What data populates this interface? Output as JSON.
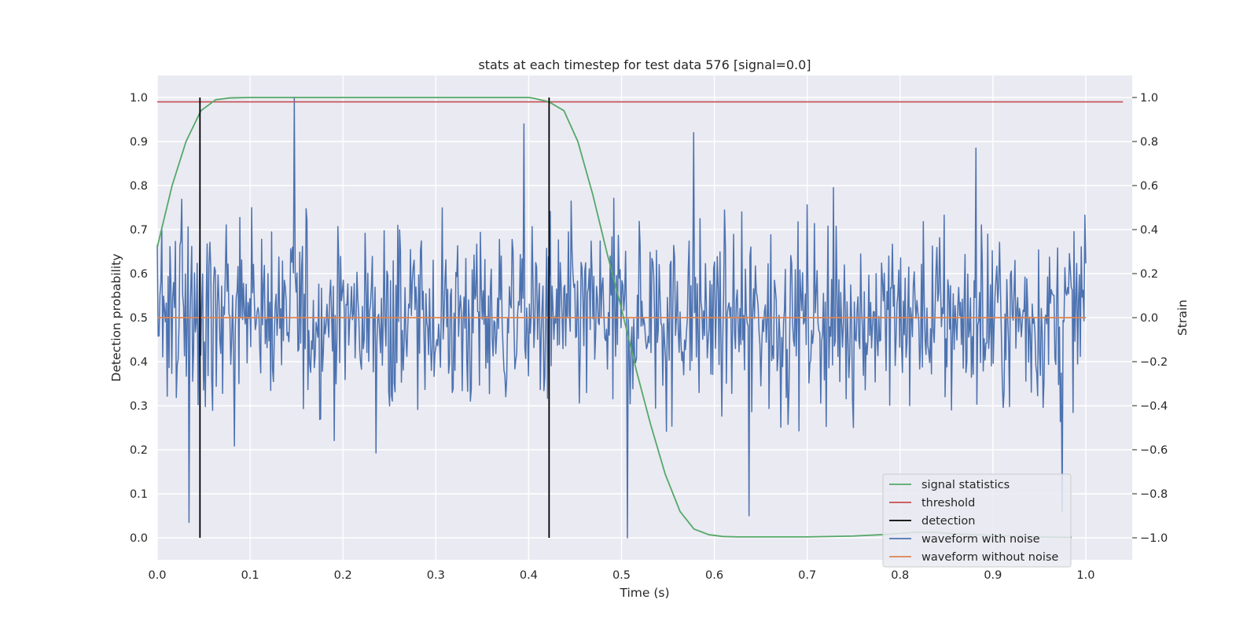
{
  "chart_data": {
    "type": "line",
    "title": "stats at each timestep for test data 576 [signal=0.0]",
    "xlabel": "Time (s)",
    "ylabel": "Detection probability",
    "ylabel_right": "Strain",
    "xlim": [
      0.0,
      1.05
    ],
    "ylim": [
      -0.05,
      1.05
    ],
    "ylim_right": [
      -1.1,
      1.1
    ],
    "x_ticks": [
      "0.0",
      "0.1",
      "0.2",
      "0.3",
      "0.4",
      "0.5",
      "0.6",
      "0.7",
      "0.8",
      "0.9",
      "1.0"
    ],
    "y_ticks": [
      "0.0",
      "0.1",
      "0.2",
      "0.3",
      "0.4",
      "0.5",
      "0.6",
      "0.7",
      "0.8",
      "0.9",
      "1.0"
    ],
    "y_ticks_right": [
      "−1.0",
      "−0.8",
      "−0.6",
      "−0.4",
      "−0.2",
      "0.0",
      "0.2",
      "0.4",
      "0.6",
      "0.8",
      "1.0"
    ],
    "grid": true,
    "legend_position": "bottom-right",
    "colors": {
      "signal_statistics": "#55a868",
      "threshold": "#c44e52",
      "detection": "#000000",
      "waveform_with_noise": "#4c72b0",
      "waveform_without_noise": "#dd8452",
      "plot_background": "#eaeaf2",
      "grid": "#ffffff"
    },
    "series": [
      {
        "name": "signal statistics",
        "axis": "left",
        "x": [
          0.0,
          0.016,
          0.031,
          0.047,
          0.063,
          0.078,
          0.1,
          0.2,
          0.3,
          0.4,
          0.406,
          0.422,
          0.438,
          0.453,
          0.469,
          0.484,
          0.5,
          0.516,
          0.531,
          0.547,
          0.563,
          0.578,
          0.594,
          0.609,
          0.625,
          0.7,
          0.75,
          0.78,
          0.8,
          0.82,
          0.84,
          0.86,
          0.9,
          0.95,
          0.985
        ],
        "y": [
          0.66,
          0.8,
          0.9,
          0.97,
          0.995,
          0.999,
          1.0,
          1.0,
          1.0,
          1.0,
          0.998,
          0.99,
          0.97,
          0.9,
          0.78,
          0.65,
          0.52,
          0.38,
          0.26,
          0.145,
          0.06,
          0.02,
          0.007,
          0.003,
          0.002,
          0.002,
          0.004,
          0.007,
          0.01,
          0.013,
          0.012,
          0.009,
          0.005,
          0.002,
          0.001
        ]
      },
      {
        "name": "threshold",
        "axis": "left",
        "x": [
          0.0,
          1.04
        ],
        "y": [
          0.99,
          0.99
        ]
      },
      {
        "name": "detection",
        "axis": "left",
        "type": "vlines",
        "x": [
          0.046,
          0.422
        ],
        "ymin": 0.0,
        "ymax": 1.0
      },
      {
        "name": "waveform with noise",
        "axis": "right",
        "x_range": [
          0.0,
          1.0
        ],
        "samples": 1024,
        "approx_amplitude": 0.3,
        "peaks": [
          [
            0.148,
            1.0
          ],
          [
            0.506,
            -1.0
          ],
          [
            0.395,
            0.88
          ],
          [
            0.578,
            0.84
          ],
          [
            0.637,
            -0.9
          ],
          [
            0.034,
            -0.93
          ],
          [
            0.882,
            0.77
          ],
          [
            0.975,
            -0.88
          ]
        ]
      },
      {
        "name": "waveform without noise",
        "axis": "right",
        "x": [
          0.0,
          1.0
        ],
        "y": [
          0.0,
          0.0
        ]
      }
    ],
    "legend": [
      "signal statistics",
      "threshold",
      "detection",
      "waveform with noise",
      "waveform without noise"
    ]
  }
}
